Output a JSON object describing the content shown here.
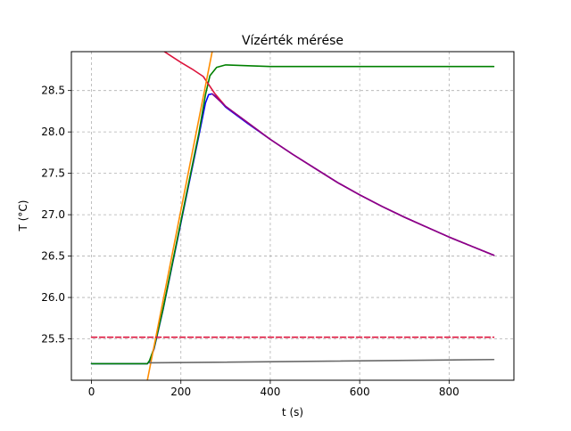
{
  "chart_data": {
    "type": "line",
    "title": "Vízérték mérése",
    "xlabel": "t (s)",
    "ylabel": "T (°C)",
    "xlim": [
      -45,
      945
    ],
    "ylim": [
      25.0,
      28.97
    ],
    "x_ticks": [
      0,
      200,
      400,
      600,
      800
    ],
    "x_tick_labels": [
      "0",
      "200",
      "400",
      "600",
      "800"
    ],
    "y_ticks": [
      25.5,
      26.0,
      26.5,
      27.0,
      27.5,
      28.0,
      28.5
    ],
    "y_tick_labels": [
      "25.5",
      "26.0",
      "26.5",
      "27.0",
      "27.5",
      "28.0",
      "28.5"
    ],
    "grid": true,
    "grid_style": "dashed",
    "legend": false,
    "series": [
      {
        "color": "#0000ff",
        "style": "solid",
        "x": [
          0,
          100,
          125,
          130,
          140,
          160,
          200,
          240,
          255,
          262,
          270,
          280,
          300,
          350,
          400,
          450,
          500,
          550,
          600,
          650,
          700,
          750,
          800,
          850,
          900
        ],
        "y": [
          25.2,
          25.2,
          25.2,
          25.23,
          25.38,
          25.85,
          26.9,
          27.95,
          28.35,
          28.45,
          28.46,
          28.42,
          28.3,
          28.1,
          27.91,
          27.73,
          27.56,
          27.39,
          27.24,
          27.1,
          26.97,
          26.85,
          26.73,
          26.62,
          26.51
        ]
      },
      {
        "color": "#008000",
        "style": "solid",
        "x": [
          0,
          50,
          100,
          125,
          130,
          140,
          160,
          200,
          240,
          255,
          265,
          280,
          300,
          350,
          400,
          500,
          600,
          700,
          800,
          900
        ],
        "y": [
          25.2,
          25.2,
          25.2,
          25.2,
          25.24,
          25.39,
          25.86,
          26.92,
          27.98,
          28.45,
          28.68,
          28.78,
          28.81,
          28.8,
          28.79,
          28.79,
          28.79,
          28.79,
          28.79,
          28.79
        ]
      },
      {
        "color": "#dc143c",
        "style": "solid",
        "x": [
          163,
          180,
          200,
          225,
          250,
          275,
          300,
          350,
          400,
          450,
          500,
          550,
          600,
          650,
          700,
          750,
          800,
          850,
          900
        ],
        "y": [
          28.97,
          28.91,
          28.84,
          28.76,
          28.67,
          28.47,
          28.31,
          28.11,
          27.91,
          27.73,
          27.56,
          27.39,
          27.24,
          27.1,
          26.97,
          26.85,
          26.73,
          26.62,
          26.51
        ]
      },
      {
        "color": "#8b008b",
        "style": "solid",
        "x": [
          270,
          300,
          350,
          400,
          450,
          500,
          550,
          600,
          650,
          700,
          750,
          800,
          850,
          900
        ],
        "y": [
          28.46,
          28.31,
          28.11,
          27.91,
          27.73,
          27.56,
          27.39,
          27.24,
          27.1,
          26.97,
          26.85,
          26.73,
          26.62,
          26.51
        ]
      },
      {
        "color": "#ff8c00",
        "style": "solid",
        "x": [
          125,
          270
        ],
        "y": [
          25.0,
          28.97
        ]
      },
      {
        "color": "#dc143c",
        "style": "dashed",
        "x": [
          0,
          900
        ],
        "y": [
          25.52,
          25.52
        ]
      },
      {
        "color": "#696969",
        "style": "solid",
        "x": [
          130,
          900
        ],
        "y": [
          25.21,
          25.25
        ]
      }
    ]
  }
}
